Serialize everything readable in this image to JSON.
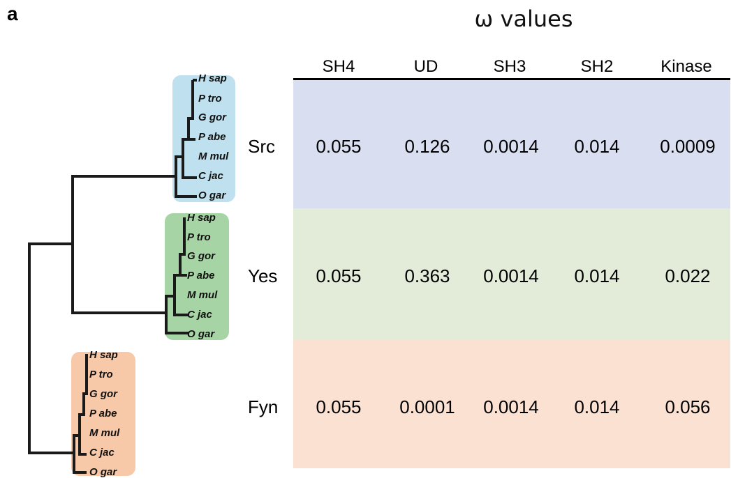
{
  "panel_label": "a",
  "title": "ω values",
  "columns": [
    "SH4",
    "UD",
    "SH3",
    "SH2",
    "Kinase"
  ],
  "rows": [
    {
      "gene": "Src",
      "values": [
        "0.055",
        "0.126",
        "0.0014",
        "0.014",
        "0.0009"
      ],
      "color": "#d9dff0",
      "clade_color": "#bfe0ee"
    },
    {
      "gene": "Yes",
      "values": [
        "0.055",
        "0.363",
        "0.0014",
        "0.014",
        "0.022"
      ],
      "color": "#e2ecd8",
      "clade_color": "#a7d4a4"
    },
    {
      "gene": "Fyn",
      "values": [
        "0.055",
        "0.0001",
        "0.0014",
        "0.014",
        "0.056"
      ],
      "color": "#fbe1d2",
      "clade_color": "#f7c9a8"
    }
  ],
  "species": [
    "H sap",
    "P tro",
    "G gor",
    "P abe",
    "M mul",
    "C jac",
    "O gar"
  ]
}
